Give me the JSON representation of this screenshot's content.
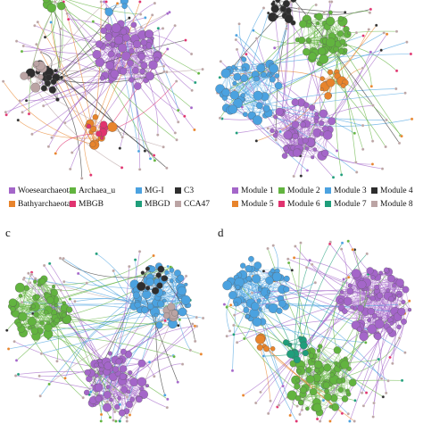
{
  "panels": [
    {
      "legend": [
        {
          "label": "Woesearchaeota",
          "color": "#a466c9"
        },
        {
          "label": "Archaea_u",
          "color": "#62b43f"
        },
        {
          "label": "MG-I",
          "color": "#4ba2e0"
        },
        {
          "label": "C3",
          "color": "#2e2e2e"
        },
        {
          "label": "Bathyarchaeota",
          "color": "#e8842c"
        },
        {
          "label": "MBGB",
          "color": "#e0336f"
        },
        {
          "label": "MBGD",
          "color": "#1f9e7b"
        },
        {
          "label": "CCA47",
          "color": "#bba4a4"
        }
      ]
    },
    {
      "legend": [
        {
          "label": "Module 1",
          "color": "#a466c9"
        },
        {
          "label": "Module 2",
          "color": "#62b43f"
        },
        {
          "label": "Module 3",
          "color": "#4ba2e0"
        },
        {
          "label": "Module 4",
          "color": "#2e2e2e"
        },
        {
          "label": "Module 5",
          "color": "#e8842c"
        },
        {
          "label": "Module 6",
          "color": "#e0336f"
        },
        {
          "label": "Module 7",
          "color": "#1f9e7b"
        },
        {
          "label": "Module 8",
          "color": "#bba4a4"
        }
      ]
    },
    {
      "label": "c"
    },
    {
      "label": "d"
    }
  ]
}
